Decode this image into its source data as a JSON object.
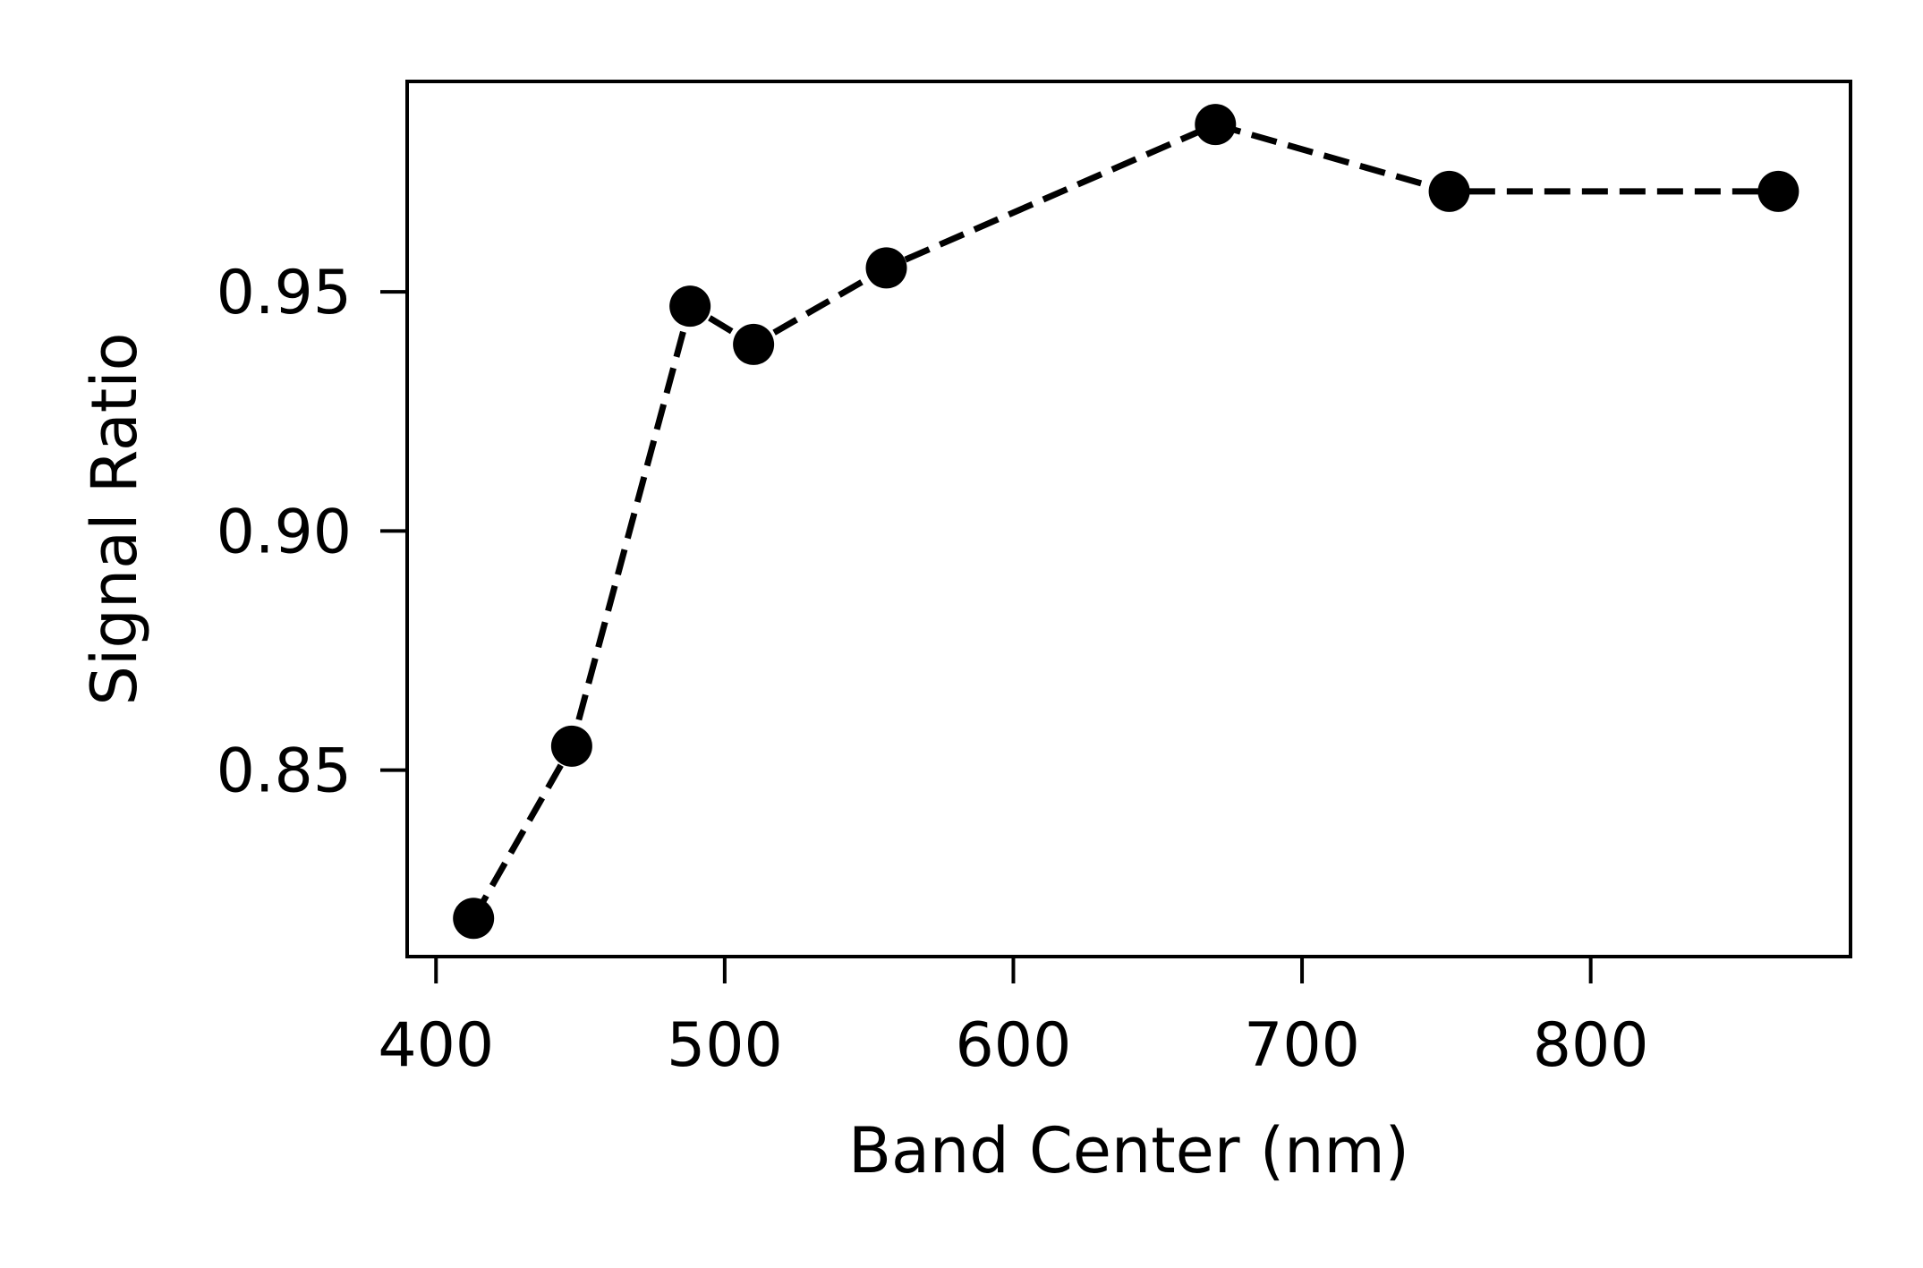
{
  "chart_data": {
    "type": "line",
    "title": "",
    "xlabel": "Band Center (nm)",
    "ylabel": "Signal Ratio",
    "xlim": [
      390,
      890
    ],
    "ylim": [
      0.811,
      0.994
    ],
    "xticks": [
      400,
      500,
      600,
      700,
      800
    ],
    "yticks": [
      0.85,
      0.9,
      0.95
    ],
    "xtick_labels": [
      "400",
      "500",
      "600",
      "700",
      "800"
    ],
    "ytick_labels": [
      "0.85",
      "0.90",
      "0.95"
    ],
    "grid": false,
    "legend": "none",
    "series": [
      {
        "x": [
          413,
          447,
          488,
          510,
          556,
          670,
          751,
          865
        ],
        "y": [
          0.819,
          0.855,
          0.947,
          0.939,
          0.955,
          0.985,
          0.971,
          0.971
        ],
        "color": "#000000",
        "line_style": "dashed",
        "marker": "circle"
      }
    ]
  }
}
